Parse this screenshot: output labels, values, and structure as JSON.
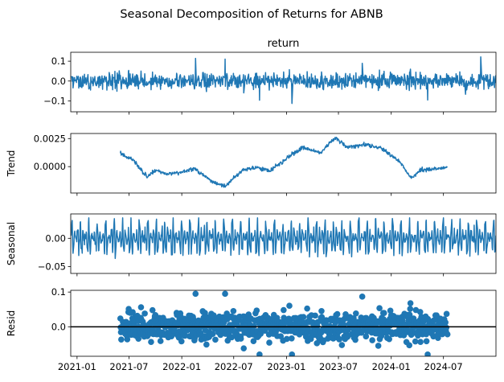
{
  "chart_data": [
    {
      "panel": "observed",
      "type": "line",
      "title": "return",
      "ylabel": "",
      "ylim": [
        -0.155,
        0.145
      ],
      "yticks": [
        -0.1,
        0.0,
        0.1
      ],
      "yticklabels": [
        "−0.1",
        "0.0",
        "0.1"
      ],
      "color": "#1f77b4",
      "series": [
        {
          "values": []
        }
      ]
    },
    {
      "panel": "trend",
      "type": "line",
      "title": "",
      "ylabel": "Trend",
      "ylim": [
        -0.00235,
        0.00295
      ],
      "yticks": [
        0.0,
        0.0025
      ],
      "yticklabels": [
        "0.0000",
        "0.0025"
      ],
      "color": "#1f77b4",
      "range": [
        "2021-06-01",
        "2024-07-15"
      ],
      "series": [
        {
          "values": []
        }
      ]
    },
    {
      "panel": "seasonal",
      "type": "line",
      "title": "",
      "ylabel": "Seasonal",
      "ylim": [
        -0.062,
        0.043
      ],
      "yticks": [
        -0.05,
        0.0
      ],
      "yticklabels": [
        "−0.05",
        "0.00"
      ],
      "color": "#1f77b4",
      "series": [
        {
          "values": []
        }
      ]
    },
    {
      "panel": "resid",
      "type": "scatter",
      "title": "",
      "ylabel": "Resid",
      "ylim": [
        -0.085,
        0.105
      ],
      "yticks": [
        0.0,
        0.1
      ],
      "yticklabels": [
        "0.0",
        "0.1"
      ],
      "color": "#1f77b4",
      "zero_line": true,
      "range": [
        "2021-06-01",
        "2024-07-15"
      ],
      "series": [
        {
          "values": []
        }
      ]
    }
  ],
  "figure": {
    "suptitle": "Seasonal Decomposition of Returns for ABNB",
    "x_range": [
      "2020-12-10",
      "2024-12-31"
    ],
    "x_ticks": [
      "2021-01-01",
      "2021-07-01",
      "2022-01-01",
      "2022-07-01",
      "2023-01-01",
      "2023-07-01",
      "2024-01-01",
      "2024-07-01"
    ],
    "x_ticklabels": [
      "2021-01",
      "2021-07",
      "2022-01",
      "2022-07",
      "2023-01",
      "2023-07",
      "2024-01",
      "2024-07"
    ]
  }
}
